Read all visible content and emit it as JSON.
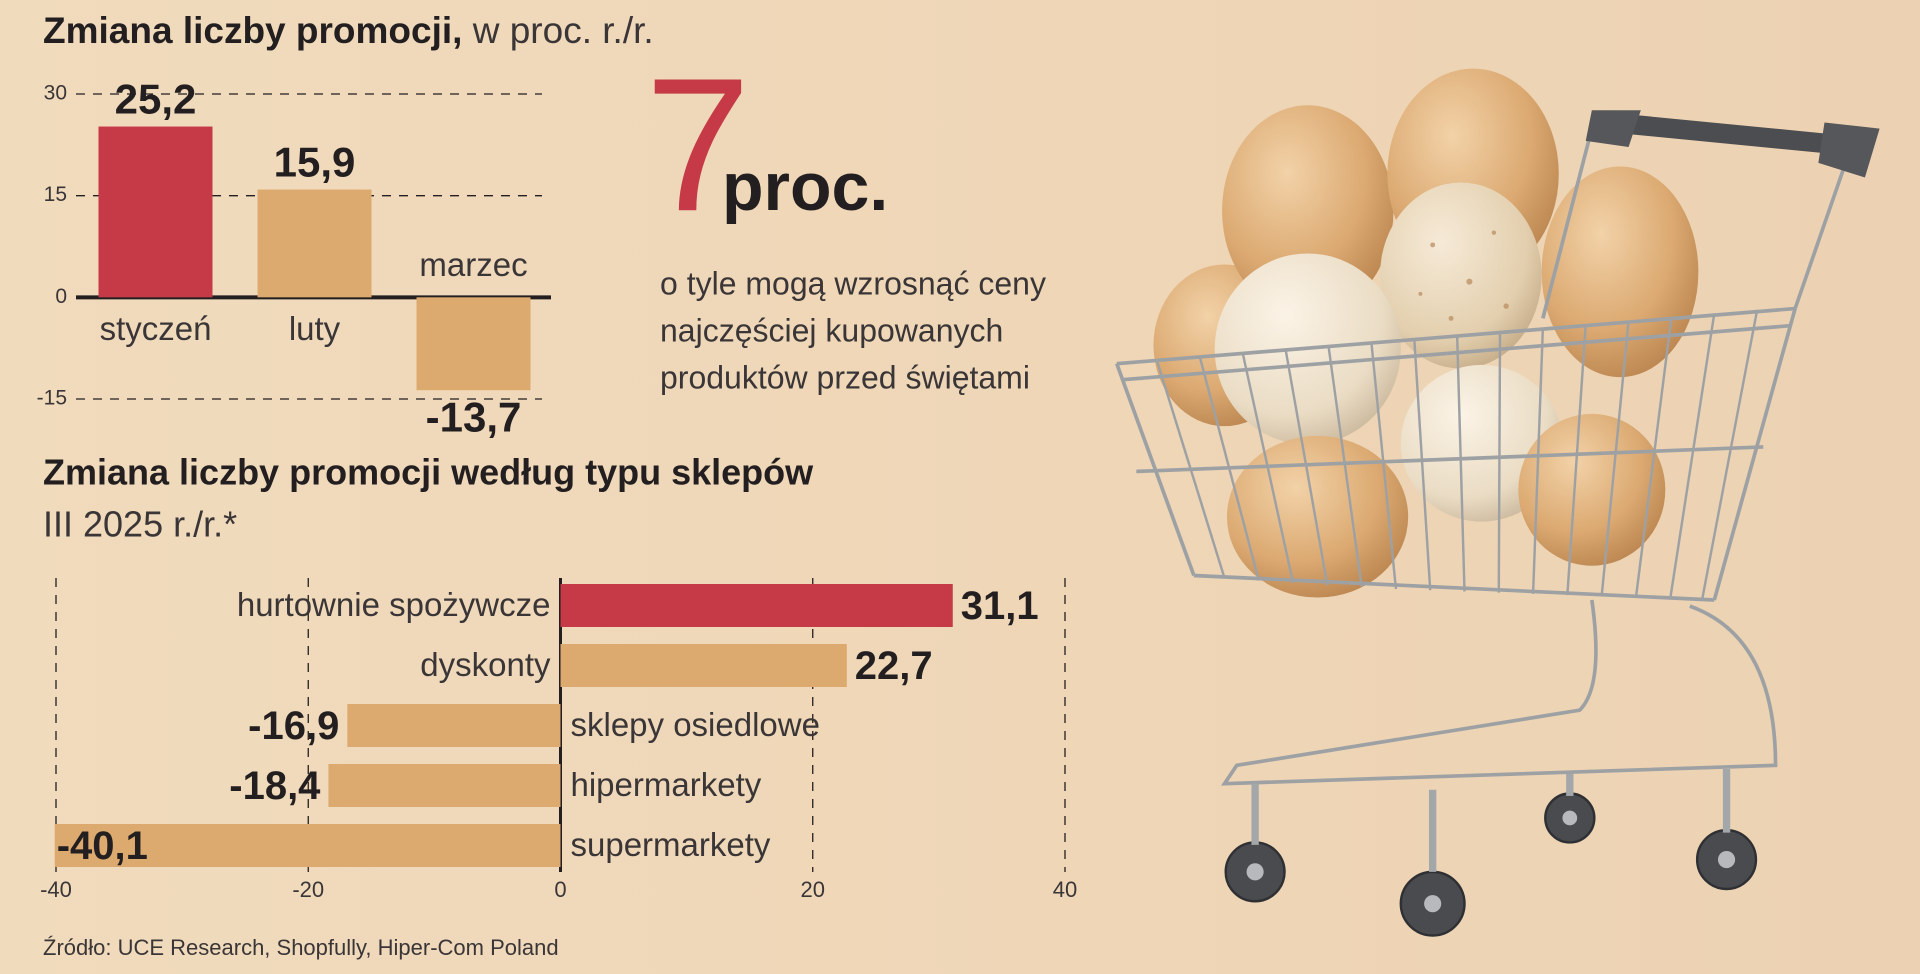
{
  "chart_data": [
    {
      "type": "bar",
      "title": "Zmiana liczby promocji,",
      "subtitle": "w proc. r./r.",
      "categories": [
        "styczeń",
        "luty",
        "marzec"
      ],
      "values": [
        25.2,
        15.9,
        -13.7
      ],
      "value_labels": [
        "25,2",
        "15,9",
        "-13,7"
      ],
      "colors": [
        "#c53a46",
        "#dcaa6e",
        "#dcaa6e"
      ],
      "ylim": [
        -15,
        30
      ],
      "yticks": [
        30,
        15,
        0,
        -15
      ],
      "grid": true
    },
    {
      "type": "barh",
      "title": "Zmiana liczby promocji według typu sklepów",
      "subtitle": "III 2025 r./r.*",
      "categories": [
        "hurtownie spożywcze",
        "dyskonty",
        "sklepy osiedlowe",
        "hipermarkety",
        "supermarkety"
      ],
      "values": [
        31.1,
        22.7,
        -16.9,
        -18.4,
        -40.1
      ],
      "value_labels": [
        "31,1",
        "22,7",
        "-16,9",
        "-18,4",
        "-40,1"
      ],
      "colors": [
        "#c53a46",
        "#dcaa6e",
        "#dcaa6e",
        "#dcaa6e",
        "#dcaa6e"
      ],
      "xlim": [
        -40,
        40
      ],
      "xticks": [
        -40,
        -20,
        0,
        20,
        40
      ],
      "grid": true
    }
  ],
  "callout": {
    "value": 7,
    "unit": "proc.",
    "lines": [
      "o tyle mogą wzrosnąć ceny",
      "najczęściej kupowanych",
      "produktów przed świętami"
    ]
  },
  "source": "Źródło: UCE Research, Shopfully, Hiper-Com Poland"
}
